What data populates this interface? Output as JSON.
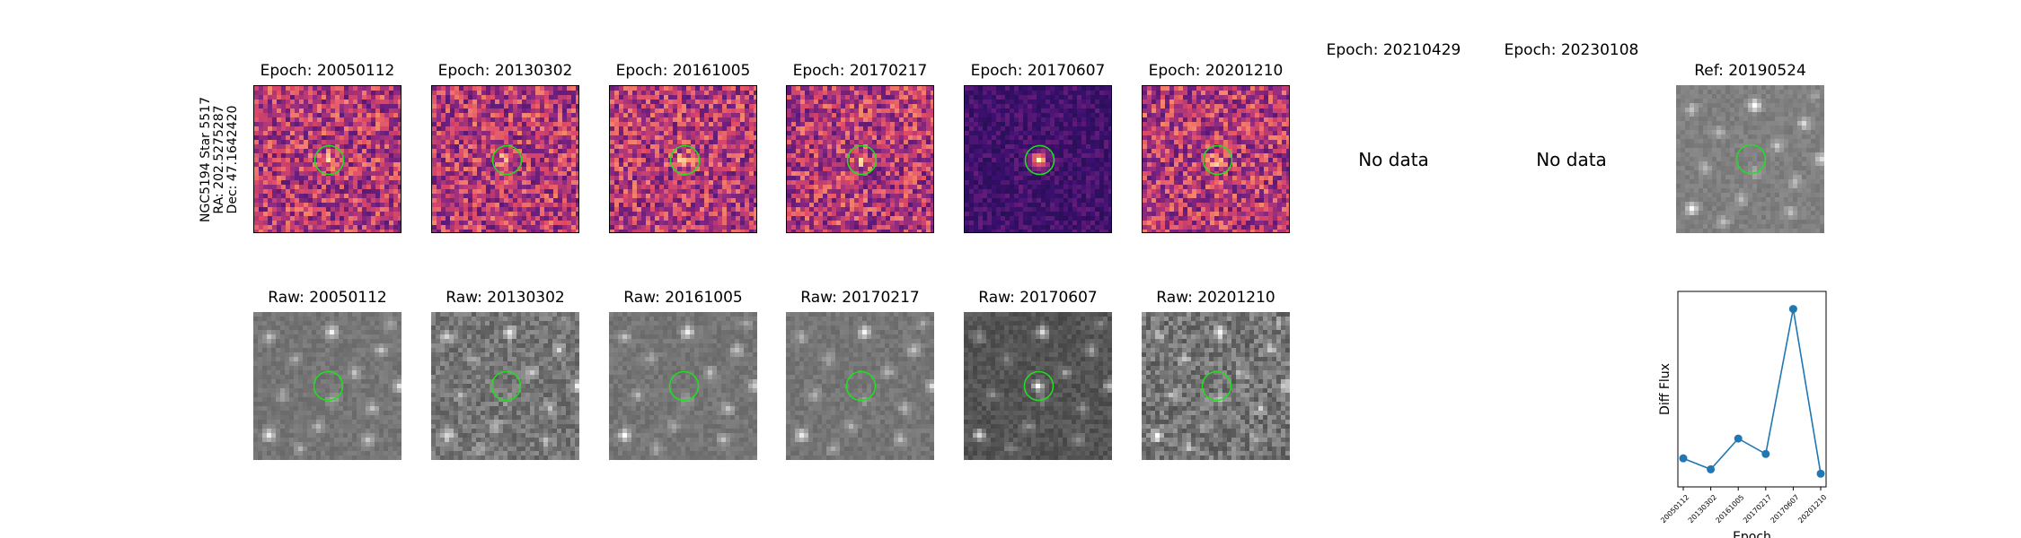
{
  "row_label": [
    "NGC5194 Star 5517",
    "RA: 202.5275287",
    "Dec: 47.1642420"
  ],
  "diff_panels": [
    {
      "title": "Epoch: 20050112",
      "has_data": true,
      "peak": 0.55
    },
    {
      "title": "Epoch: 20130302",
      "has_data": true,
      "peak": 0.55
    },
    {
      "title": "Epoch: 20161005",
      "has_data": true,
      "peak": 0.55
    },
    {
      "title": "Epoch: 20170217",
      "has_data": true,
      "peak": 0.55
    },
    {
      "title": "Epoch: 20170607",
      "has_data": true,
      "peak": 1.0
    },
    {
      "title": "Epoch: 20201210",
      "has_data": true,
      "peak": 0.55
    },
    {
      "title": "Epoch: 20210429",
      "has_data": false,
      "nodata_text": "No data"
    },
    {
      "title": "Epoch: 20230108",
      "has_data": false,
      "nodata_text": "No data"
    }
  ],
  "ref_panel": {
    "title": "Ref: 20190524"
  },
  "raw_panels": [
    {
      "title": "Raw: 20050112",
      "noise": 0.1
    },
    {
      "title": "Raw: 20130302",
      "noise": 0.22
    },
    {
      "title": "Raw: 20161005",
      "noise": 0.1
    },
    {
      "title": "Raw: 20170217",
      "noise": 0.1
    },
    {
      "title": "Raw: 20170607",
      "noise": 0.12
    },
    {
      "title": "Raw: 20201210",
      "noise": 0.28
    }
  ],
  "colors": {
    "marker_circle": "#22dd22",
    "line": "#1f77b4",
    "diff_low": "#2a0f5e",
    "diff_high": "#fcc66d"
  },
  "chart_data": {
    "type": "line",
    "x": [
      "20050112",
      "20130302",
      "20161005",
      "20170217",
      "20170607",
      "20201210"
    ],
    "values": [
      10,
      5,
      19,
      12,
      78,
      3
    ],
    "xlabel": "Epoch",
    "ylabel": "Diff Flux",
    "ylim": [
      -3,
      86
    ],
    "grid": false
  }
}
